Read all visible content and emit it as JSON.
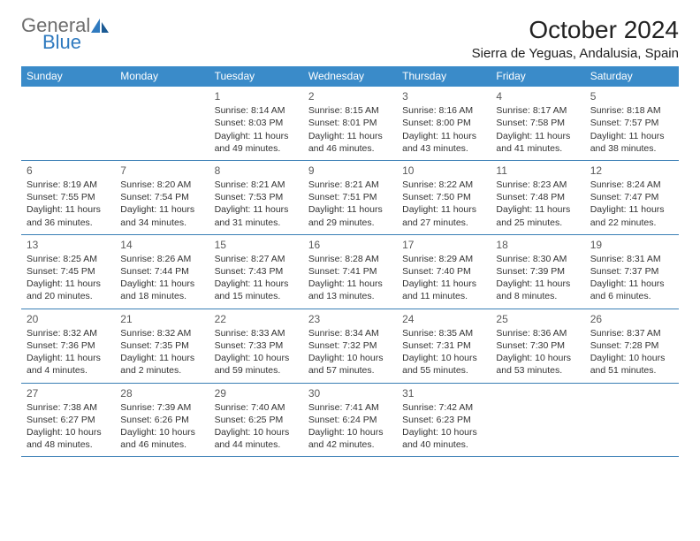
{
  "logo": {
    "text1": "General",
    "text2": "Blue"
  },
  "title": "October 2024",
  "location": "Sierra de Yeguas, Andalusia, Spain",
  "colors": {
    "header_bg": "#3a8bc9",
    "header_text": "#ffffff",
    "row_border": "#3a7fb5",
    "logo_gray": "#6d6d6d",
    "logo_blue": "#2f7abf",
    "body_text": "#333333",
    "daynum_text": "#5a5a5a",
    "page_bg": "#ffffff"
  },
  "weekdays": [
    "Sunday",
    "Monday",
    "Tuesday",
    "Wednesday",
    "Thursday",
    "Friday",
    "Saturday"
  ],
  "weeks": [
    [
      {
        "n": "",
        "t": ""
      },
      {
        "n": "",
        "t": ""
      },
      {
        "n": "1",
        "t": "Sunrise: 8:14 AM\nSunset: 8:03 PM\nDaylight: 11 hours and 49 minutes."
      },
      {
        "n": "2",
        "t": "Sunrise: 8:15 AM\nSunset: 8:01 PM\nDaylight: 11 hours and 46 minutes."
      },
      {
        "n": "3",
        "t": "Sunrise: 8:16 AM\nSunset: 8:00 PM\nDaylight: 11 hours and 43 minutes."
      },
      {
        "n": "4",
        "t": "Sunrise: 8:17 AM\nSunset: 7:58 PM\nDaylight: 11 hours and 41 minutes."
      },
      {
        "n": "5",
        "t": "Sunrise: 8:18 AM\nSunset: 7:57 PM\nDaylight: 11 hours and 38 minutes."
      }
    ],
    [
      {
        "n": "6",
        "t": "Sunrise: 8:19 AM\nSunset: 7:55 PM\nDaylight: 11 hours and 36 minutes."
      },
      {
        "n": "7",
        "t": "Sunrise: 8:20 AM\nSunset: 7:54 PM\nDaylight: 11 hours and 34 minutes."
      },
      {
        "n": "8",
        "t": "Sunrise: 8:21 AM\nSunset: 7:53 PM\nDaylight: 11 hours and 31 minutes."
      },
      {
        "n": "9",
        "t": "Sunrise: 8:21 AM\nSunset: 7:51 PM\nDaylight: 11 hours and 29 minutes."
      },
      {
        "n": "10",
        "t": "Sunrise: 8:22 AM\nSunset: 7:50 PM\nDaylight: 11 hours and 27 minutes."
      },
      {
        "n": "11",
        "t": "Sunrise: 8:23 AM\nSunset: 7:48 PM\nDaylight: 11 hours and 25 minutes."
      },
      {
        "n": "12",
        "t": "Sunrise: 8:24 AM\nSunset: 7:47 PM\nDaylight: 11 hours and 22 minutes."
      }
    ],
    [
      {
        "n": "13",
        "t": "Sunrise: 8:25 AM\nSunset: 7:45 PM\nDaylight: 11 hours and 20 minutes."
      },
      {
        "n": "14",
        "t": "Sunrise: 8:26 AM\nSunset: 7:44 PM\nDaylight: 11 hours and 18 minutes."
      },
      {
        "n": "15",
        "t": "Sunrise: 8:27 AM\nSunset: 7:43 PM\nDaylight: 11 hours and 15 minutes."
      },
      {
        "n": "16",
        "t": "Sunrise: 8:28 AM\nSunset: 7:41 PM\nDaylight: 11 hours and 13 minutes."
      },
      {
        "n": "17",
        "t": "Sunrise: 8:29 AM\nSunset: 7:40 PM\nDaylight: 11 hours and 11 minutes."
      },
      {
        "n": "18",
        "t": "Sunrise: 8:30 AM\nSunset: 7:39 PM\nDaylight: 11 hours and 8 minutes."
      },
      {
        "n": "19",
        "t": "Sunrise: 8:31 AM\nSunset: 7:37 PM\nDaylight: 11 hours and 6 minutes."
      }
    ],
    [
      {
        "n": "20",
        "t": "Sunrise: 8:32 AM\nSunset: 7:36 PM\nDaylight: 11 hours and 4 minutes."
      },
      {
        "n": "21",
        "t": "Sunrise: 8:32 AM\nSunset: 7:35 PM\nDaylight: 11 hours and 2 minutes."
      },
      {
        "n": "22",
        "t": "Sunrise: 8:33 AM\nSunset: 7:33 PM\nDaylight: 10 hours and 59 minutes."
      },
      {
        "n": "23",
        "t": "Sunrise: 8:34 AM\nSunset: 7:32 PM\nDaylight: 10 hours and 57 minutes."
      },
      {
        "n": "24",
        "t": "Sunrise: 8:35 AM\nSunset: 7:31 PM\nDaylight: 10 hours and 55 minutes."
      },
      {
        "n": "25",
        "t": "Sunrise: 8:36 AM\nSunset: 7:30 PM\nDaylight: 10 hours and 53 minutes."
      },
      {
        "n": "26",
        "t": "Sunrise: 8:37 AM\nSunset: 7:28 PM\nDaylight: 10 hours and 51 minutes."
      }
    ],
    [
      {
        "n": "27",
        "t": "Sunrise: 7:38 AM\nSunset: 6:27 PM\nDaylight: 10 hours and 48 minutes."
      },
      {
        "n": "28",
        "t": "Sunrise: 7:39 AM\nSunset: 6:26 PM\nDaylight: 10 hours and 46 minutes."
      },
      {
        "n": "29",
        "t": "Sunrise: 7:40 AM\nSunset: 6:25 PM\nDaylight: 10 hours and 44 minutes."
      },
      {
        "n": "30",
        "t": "Sunrise: 7:41 AM\nSunset: 6:24 PM\nDaylight: 10 hours and 42 minutes."
      },
      {
        "n": "31",
        "t": "Sunrise: 7:42 AM\nSunset: 6:23 PM\nDaylight: 10 hours and 40 minutes."
      },
      {
        "n": "",
        "t": ""
      },
      {
        "n": "",
        "t": ""
      }
    ]
  ]
}
